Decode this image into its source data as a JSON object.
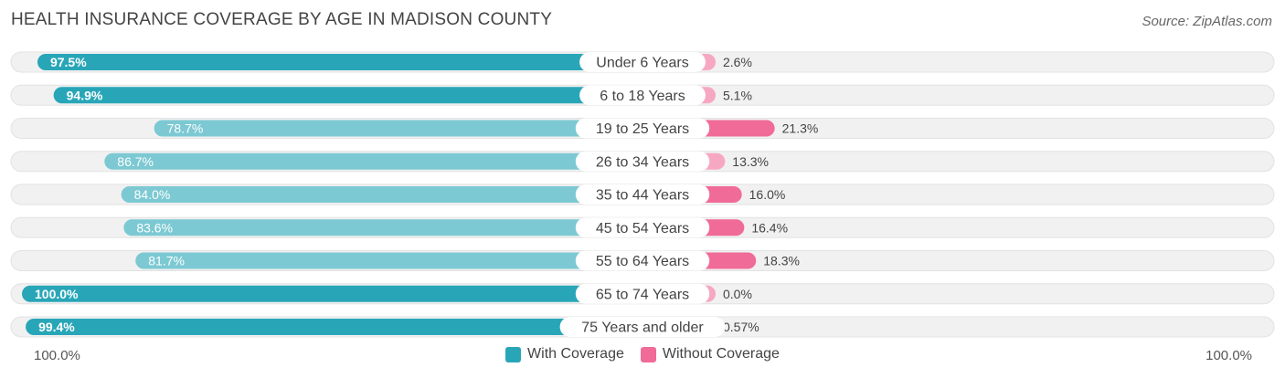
{
  "title": "HEALTH INSURANCE COVERAGE BY AGE IN MADISON COUNTY",
  "source": "Source: ZipAtlas.com",
  "colors": {
    "with_strong": "#28a6b8",
    "with_light": "#7cc9d3",
    "without_strong": "#f06b98",
    "without_light": "#f6a8c2",
    "track": "#f1f1f1"
  },
  "chart_data": {
    "type": "bar",
    "orientation": "horizontal-diverging",
    "title": "HEALTH INSURANCE COVERAGE BY AGE IN MADISON COUNTY",
    "categories": [
      "Under 6 Years",
      "6 to 18 Years",
      "19 to 25 Years",
      "26 to 34 Years",
      "35 to 44 Years",
      "45 to 54 Years",
      "55 to 64 Years",
      "65 to 74 Years",
      "75 Years and older"
    ],
    "series": [
      {
        "name": "With Coverage",
        "values": [
          97.5,
          94.9,
          78.7,
          86.7,
          84.0,
          83.6,
          81.7,
          100.0,
          99.4
        ],
        "labels": [
          "97.5%",
          "94.9%",
          "78.7%",
          "86.7%",
          "84.0%",
          "83.6%",
          "81.7%",
          "100.0%",
          "99.4%"
        ]
      },
      {
        "name": "Without Coverage",
        "values": [
          2.6,
          5.1,
          21.3,
          13.3,
          16.0,
          16.4,
          18.3,
          0.0,
          0.57
        ],
        "labels": [
          "2.6%",
          "5.1%",
          "21.3%",
          "13.3%",
          "16.0%",
          "16.4%",
          "18.3%",
          "0.0%",
          "0.57%"
        ]
      }
    ],
    "axis": {
      "left_label": "100.0%",
      "right_label": "100.0%",
      "range": [
        0,
        100
      ]
    },
    "legend_position": "bottom-center"
  }
}
